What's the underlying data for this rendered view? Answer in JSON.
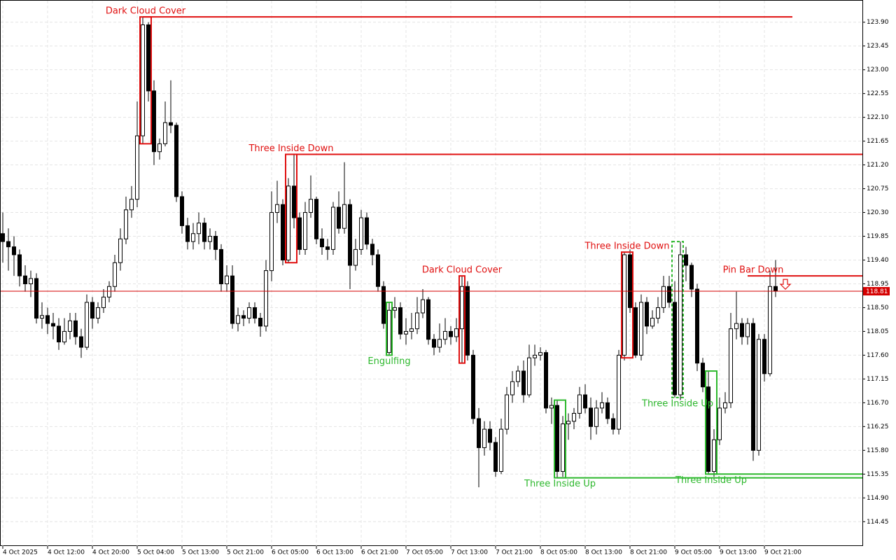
{
  "chart_data": {
    "type": "candlestick",
    "ylim": [
      113.99,
      124.32
    ],
    "yticks": [
      114.45,
      {
        "value": 114.9,
        "label": "114.90"
      },
      115.35,
      {
        "value": 115.8,
        "label": "115.80"
      },
      116.25,
      {
        "value": 116.7,
        "label": "116.70"
      },
      117.15,
      {
        "value": 117.6,
        "label": "117.60"
      },
      118.05,
      {
        "value": 118.5,
        "label": "118.50"
      },
      118.95,
      {
        "value": 119.4,
        "label": "119.40"
      },
      119.85,
      {
        "value": 120.3,
        "label": "120.30"
      },
      120.75,
      {
        "value": 121.2,
        "label": "121.20"
      },
      121.65,
      {
        "value": 122.1,
        "label": "122.10"
      },
      122.55,
      {
        "value": 123,
        "label": "123.00"
      },
      123.45,
      {
        "value": 123.9,
        "label": "123.90"
      }
    ],
    "grid": true,
    "up_color": "#ffffff",
    "down_color": "#000000",
    "last_price": 118.81,
    "last_price_color": "#d40000",
    "categories": [
      "4 Oct 2025",
      null,
      null,
      null,
      null,
      null,
      null,
      null,
      "4 Oct 12:00",
      null,
      null,
      null,
      null,
      null,
      null,
      null,
      "4 Oct 20:00",
      null,
      null,
      null,
      null,
      null,
      null,
      null,
      "5 Oct 04:00",
      null,
      null,
      null,
      null,
      null,
      null,
      null,
      "5 Oct 13:00",
      null,
      null,
      null,
      null,
      null,
      null,
      null,
      "5 Oct 21:00",
      null,
      null,
      null,
      null,
      null,
      null,
      null,
      "6 Oct 05:00",
      null,
      null,
      null,
      null,
      null,
      null,
      null,
      "6 Oct 13:00",
      null,
      null,
      null,
      null,
      null,
      null,
      null,
      "6 Oct 21:00",
      null,
      null,
      null,
      null,
      null,
      null,
      null,
      "7 Oct 05:00",
      null,
      null,
      null,
      null,
      null,
      null,
      null,
      "7 Oct 13:00",
      null,
      null,
      null,
      null,
      null,
      null,
      null,
      "7 Oct 21:00",
      null,
      null,
      null,
      null,
      null,
      null,
      null,
      "8 Oct 05:00",
      null,
      null,
      null,
      null,
      null,
      null,
      null,
      "8 Oct 13:00",
      null,
      null,
      null,
      null,
      null,
      null,
      null,
      "8 Oct 21:00",
      null,
      null,
      null,
      null,
      null,
      null,
      null,
      "9 Oct 05:00",
      null,
      null,
      null,
      null,
      null,
      null,
      null,
      "9 Oct 13:00",
      null,
      null,
      null,
      null,
      null,
      null,
      null,
      "9 Oct 21:00",
      null,
      null
    ],
    "open": [
      119.9,
      119.75,
      119.65,
      119.5,
      119.1,
      118.95,
      119.05,
      118.3,
      118.35,
      118.2,
      118.15,
      117.85,
      118.05,
      118.25,
      117.95,
      117.75,
      118.6,
      118.3,
      118.5,
      118.7,
      118.9,
      119.35,
      119.8,
      120.35,
      120.55,
      121.75,
      123.85,
      122.6,
      121.45,
      121.6,
      122.0,
      121.95,
      120.6,
      120.05,
      119.75,
      119.9,
      120.1,
      119.75,
      119.85,
      119.6,
      118.95,
      119.1,
      118.2,
      118.35,
      118.3,
      118.5,
      118.3,
      118.15,
      119.2,
      120.3,
      120.45,
      119.4,
      120.8,
      120.2,
      119.6,
      120.3,
      120.55,
      119.8,
      119.65,
      119.6,
      120.4,
      120.0,
      120.45,
      119.3,
      119.6,
      120.2,
      119.7,
      119.5,
      118.9,
      117.65,
      118.45,
      118.5,
      118.0,
      118.05,
      118.1,
      118.4,
      118.65,
      117.9,
      117.75,
      117.9,
      118.05,
      117.95,
      118.1,
      118.9,
      117.6,
      116.4,
      115.85,
      116.2,
      115.95,
      115.4,
      116.2,
      116.85,
      117.1,
      117.3,
      116.85,
      117.55,
      117.6,
      117.65,
      116.6,
      116.65,
      115.4,
      116.3,
      116.35,
      116.5,
      116.85,
      116.6,
      116.25,
      116.6,
      116.7,
      116.4,
      116.2,
      117.6,
      119.5,
      118.5,
      117.6,
      118.6,
      118.15,
      118.3,
      118.5,
      118.9,
      118.6,
      116.85,
      119.5,
      119.3,
      118.85,
      117.45,
      117.0,
      115.4,
      116.0,
      116.6,
      116.7,
      118.1,
      118.2,
      117.95,
      118.2,
      115.8,
      117.9,
      117.25,
      118.9
    ],
    "high": [
      120.3,
      120.0,
      119.85,
      119.6,
      119.3,
      119.2,
      119.15,
      118.6,
      118.5,
      118.4,
      118.3,
      118.3,
      118.4,
      118.4,
      118.1,
      118.75,
      118.7,
      118.6,
      118.85,
      119.0,
      119.5,
      120.0,
      120.6,
      120.8,
      122.4,
      124.0,
      123.9,
      122.8,
      121.7,
      122.4,
      122.8,
      122.0,
      120.7,
      120.2,
      120.1,
      120.3,
      120.2,
      120.0,
      119.95,
      119.7,
      119.3,
      119.3,
      118.5,
      118.45,
      118.6,
      118.6,
      118.4,
      119.4,
      120.7,
      120.9,
      120.55,
      120.95,
      121.4,
      120.3,
      120.5,
      121.0,
      120.6,
      120.0,
      119.8,
      120.5,
      120.7,
      121.25,
      120.55,
      119.8,
      120.35,
      120.3,
      119.8,
      119.6,
      119.0,
      118.6,
      118.7,
      118.6,
      118.3,
      118.4,
      118.7,
      118.85,
      118.7,
      118.0,
      118.2,
      118.3,
      118.15,
      118.3,
      119.1,
      119.0,
      117.7,
      116.6,
      116.35,
      116.35,
      116.05,
      116.4,
      117.0,
      117.3,
      117.4,
      117.5,
      117.8,
      117.8,
      117.75,
      117.7,
      116.8,
      116.75,
      116.45,
      116.5,
      116.6,
      117.0,
      117.05,
      116.8,
      116.75,
      116.9,
      116.8,
      116.5,
      117.7,
      119.55,
      119.6,
      118.6,
      118.75,
      118.7,
      118.45,
      118.7,
      119.1,
      119.1,
      119.0,
      119.75,
      119.65,
      119.35,
      118.95,
      117.55,
      117.3,
      116.2,
      116.8,
      116.9,
      118.4,
      118.8,
      118.3,
      118.3,
      118.3,
      118.0,
      118.0,
      119.2,
      119.4
    ],
    "low": [
      119.35,
      119.2,
      119.1,
      118.9,
      118.8,
      118.7,
      118.2,
      118.1,
      118.0,
      117.9,
      117.7,
      117.8,
      117.9,
      117.8,
      117.55,
      117.7,
      118.1,
      118.2,
      118.4,
      118.6,
      118.8,
      119.2,
      119.7,
      120.2,
      120.4,
      121.6,
      122.4,
      121.2,
      121.3,
      121.55,
      121.8,
      120.5,
      119.9,
      119.6,
      119.6,
      119.7,
      119.6,
      119.6,
      119.4,
      118.8,
      118.8,
      118.1,
      118.05,
      118.15,
      118.2,
      118.2,
      117.95,
      118.05,
      119.0,
      120.1,
      119.3,
      119.35,
      120.0,
      119.5,
      119.5,
      120.2,
      119.7,
      119.5,
      119.4,
      119.5,
      119.9,
      119.9,
      118.85,
      119.2,
      119.5,
      119.6,
      119.3,
      118.8,
      118.1,
      117.6,
      118.3,
      117.9,
      117.8,
      117.9,
      118.0,
      118.3,
      117.8,
      117.6,
      117.65,
      117.8,
      117.8,
      117.85,
      117.45,
      117.5,
      116.3,
      115.1,
      115.7,
      115.8,
      115.3,
      115.35,
      116.1,
      116.7,
      117.0,
      116.7,
      116.8,
      117.4,
      117.5,
      116.5,
      116.3,
      115.28,
      115.3,
      116.0,
      116.2,
      116.4,
      116.5,
      116.0,
      116.1,
      116.5,
      116.3,
      116.1,
      116.1,
      117.5,
      118.4,
      117.55,
      117.5,
      118.0,
      118.1,
      118.2,
      118.4,
      118.5,
      116.8,
      116.75,
      119.0,
      118.7,
      117.3,
      116.9,
      115.35,
      115.3,
      115.9,
      116.5,
      116.6,
      117.9,
      117.8,
      117.8,
      115.6,
      115.7,
      117.1,
      117.2,
      118.7
    ],
    "close": [
      119.75,
      119.65,
      119.5,
      119.1,
      118.95,
      119.05,
      118.3,
      118.35,
      118.2,
      118.15,
      117.85,
      118.05,
      118.25,
      117.95,
      117.75,
      118.6,
      118.3,
      118.5,
      118.7,
      118.9,
      119.35,
      119.8,
      120.35,
      120.55,
      121.75,
      123.85,
      122.6,
      121.45,
      121.6,
      122.0,
      121.95,
      120.6,
      120.05,
      119.75,
      119.9,
      120.1,
      119.75,
      119.85,
      119.6,
      118.95,
      119.1,
      118.2,
      118.35,
      118.3,
      118.5,
      118.3,
      118.15,
      119.2,
      120.3,
      120.45,
      119.4,
      120.8,
      120.2,
      119.6,
      120.3,
      120.55,
      119.8,
      119.65,
      119.6,
      120.4,
      120.0,
      120.45,
      119.3,
      119.6,
      120.2,
      119.7,
      119.5,
      118.9,
      118.2,
      118.45,
      118.5,
      118.0,
      118.05,
      118.1,
      118.4,
      118.65,
      117.9,
      117.75,
      117.9,
      118.05,
      117.95,
      118.1,
      118.9,
      117.6,
      116.4,
      115.85,
      116.2,
      115.95,
      115.4,
      116.2,
      116.85,
      117.1,
      117.3,
      116.85,
      117.55,
      117.6,
      117.65,
      116.6,
      116.65,
      115.4,
      116.3,
      116.35,
      116.5,
      116.85,
      116.6,
      116.25,
      116.6,
      116.7,
      116.4,
      116.2,
      117.6,
      119.5,
      118.5,
      117.6,
      118.6,
      118.15,
      118.3,
      118.5,
      118.9,
      118.6,
      116.85,
      119.5,
      119.3,
      118.85,
      117.45,
      117.0,
      115.4,
      116.0,
      116.6,
      116.7,
      118.1,
      118.2,
      117.95,
      118.2,
      115.8,
      117.9,
      117.25,
      118.9,
      118.81
    ],
    "patterns": [
      {
        "label": "Dark Cloud Cover",
        "color": "#e01010",
        "first": 25,
        "last": 26,
        "high": 124.0,
        "low": 121.6,
        "level": 124.0,
        "to": 141
      },
      {
        "label": "Three Inside Down",
        "color": "#e01010",
        "first": 51,
        "last": 52,
        "high": 121.4,
        "low": 119.35,
        "level": 121.4
      },
      {
        "label": "Engulfing",
        "color": "#2db82d",
        "first": 69,
        "last": 69,
        "high": 118.6,
        "low": 117.6
      },
      {
        "label": "Dark Cloud Cover",
        "color": "#e01010",
        "first": 82,
        "last": 82,
        "high": 119.1,
        "low": 117.45
      },
      {
        "label": "Three Inside Up",
        "color": "#2db82d",
        "first": 99,
        "last": 100,
        "high": 116.75,
        "low": 115.28,
        "level": 115.28
      },
      {
        "label": "Three Inside Down",
        "color": "#e01010",
        "first": 111,
        "last": 112,
        "high": 119.55,
        "low": 117.55
      },
      {
        "label": "Three Inside Up",
        "color": "#2db82d",
        "first": 120,
        "last": 121,
        "high": 119.75,
        "low": 116.8,
        "dashed": true
      },
      {
        "label": "Three Inside Up",
        "color": "#2db82d",
        "first": 126,
        "last": 127,
        "high": 117.3,
        "low": 115.35,
        "level": 115.35
      },
      {
        "label": "Pin Bar Down",
        "color": "#e01010",
        "first": 133,
        "level": 119.1,
        "arrow": true
      }
    ]
  }
}
